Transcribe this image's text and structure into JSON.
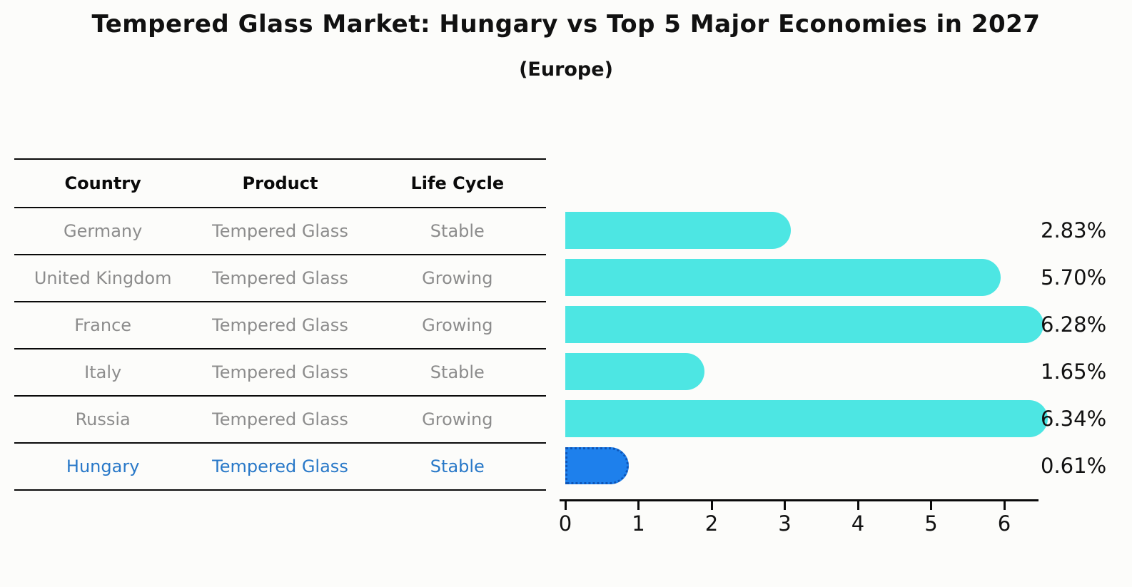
{
  "title": "Tempered Glass Market: Hungary vs Top 5 Major Economies in 2027",
  "subtitle": "(Europe)",
  "table": {
    "headers": [
      "Country",
      "Product",
      "Life Cycle"
    ]
  },
  "chart_data": {
    "type": "bar",
    "orientation": "horizontal",
    "title": "Tempered Glass Market: Hungary vs Top 5 Major Economies in 2027",
    "subtitle": "(Europe)",
    "categories": [
      "Germany",
      "United Kingdom",
      "France",
      "Italy",
      "Russia",
      "Hungary"
    ],
    "rows": [
      {
        "country": "Germany",
        "product": "Tempered Glass",
        "life_cycle": "Stable",
        "value": 2.83,
        "label": "2.83%",
        "highlight": false
      },
      {
        "country": "United Kingdom",
        "product": "Tempered Glass",
        "life_cycle": "Growing",
        "value": 5.7,
        "label": "5.70%",
        "highlight": false
      },
      {
        "country": "France",
        "product": "Tempered Glass",
        "life_cycle": "Growing",
        "value": 6.28,
        "label": "6.28%",
        "highlight": false
      },
      {
        "country": "Italy",
        "product": "Tempered Glass",
        "life_cycle": "Stable",
        "value": 1.65,
        "label": "1.65%",
        "highlight": false
      },
      {
        "country": "Russia",
        "product": "Tempered Glass",
        "life_cycle": "Growing",
        "value": 6.34,
        "label": "6.34%",
        "highlight": false
      },
      {
        "country": "Hungary",
        "product": "Tempered Glass",
        "life_cycle": "Stable",
        "value": 0.61,
        "label": "0.61%",
        "highlight": true
      }
    ],
    "xlim": [
      0,
      6.5
    ],
    "x_ticks": [
      "0",
      "1",
      "2",
      "3",
      "4",
      "5",
      "6"
    ],
    "grid": false,
    "legend": false,
    "colors": {
      "bar": "#4de6e3",
      "highlight_bar": "#1e80ec",
      "highlight_border": "#0d55b8",
      "highlight_text": "#2878c8",
      "body_text": "#8c8c8c",
      "header_text": "#0a0a0a"
    }
  }
}
